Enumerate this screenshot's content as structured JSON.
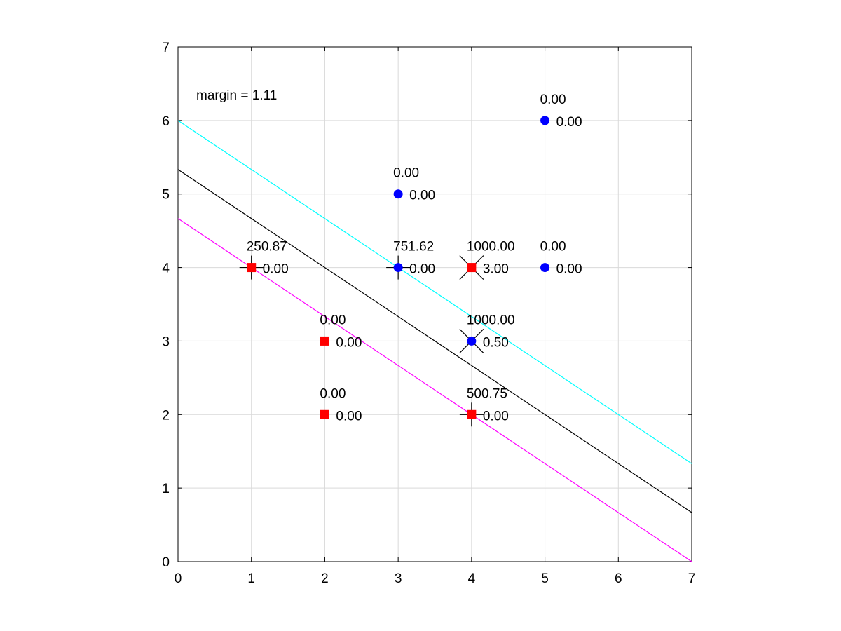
{
  "chart_data": {
    "type": "scatter",
    "title": "",
    "xlabel": "",
    "ylabel": "",
    "xlim": [
      0,
      7
    ],
    "ylim": [
      0,
      7
    ],
    "x_ticks": [
      "0",
      "1",
      "2",
      "3",
      "4",
      "5",
      "6",
      "7"
    ],
    "y_ticks": [
      "0",
      "1",
      "2",
      "3",
      "4",
      "5",
      "6",
      "7"
    ],
    "grid": true,
    "annotation": "margin = 1.11",
    "colors": {
      "class_neg": "#ff0000",
      "class_pos": "#0000ff",
      "decision_line": "#000000",
      "margin_upper": "#00ffff",
      "margin_lower": "#ff00ff",
      "grid": "#d9d9d9"
    },
    "lines": [
      {
        "role": "decision-boundary",
        "color": "#000000",
        "x": [
          0,
          7
        ],
        "y": [
          5.333,
          0.667
        ]
      },
      {
        "role": "margin-upper",
        "color": "#00ffff",
        "x": [
          0,
          7
        ],
        "y": [
          6.0,
          1.333
        ]
      },
      {
        "role": "margin-lower",
        "color": "#ff00ff",
        "x": [
          0,
          7
        ],
        "y": [
          4.667,
          0.0
        ]
      }
    ],
    "points": [
      {
        "x": 1,
        "y": 4,
        "class": "neg",
        "marker": "plus",
        "top": "250.87",
        "right": "0.00"
      },
      {
        "x": 2,
        "y": 3,
        "class": "neg",
        "marker": "none",
        "top": "0.00",
        "right": "0.00"
      },
      {
        "x": 2,
        "y": 2,
        "class": "neg",
        "marker": "none",
        "top": "0.00",
        "right": "0.00"
      },
      {
        "x": 4,
        "y": 4,
        "class": "neg",
        "marker": "cross",
        "top": "1000.00",
        "right": "3.00"
      },
      {
        "x": 4,
        "y": 2,
        "class": "neg",
        "marker": "plus",
        "top": "500.75",
        "right": "0.00"
      },
      {
        "x": 3,
        "y": 5,
        "class": "pos",
        "marker": "none",
        "top": "0.00",
        "right": "0.00"
      },
      {
        "x": 3,
        "y": 4,
        "class": "pos",
        "marker": "plus",
        "top": "751.62",
        "right": "0.00"
      },
      {
        "x": 4,
        "y": 3,
        "class": "pos",
        "marker": "cross",
        "top": "1000.00",
        "right": "0.50"
      },
      {
        "x": 5,
        "y": 6,
        "class": "pos",
        "marker": "none",
        "top": "0.00",
        "right": "0.00"
      },
      {
        "x": 5,
        "y": 4,
        "class": "pos",
        "marker": "none",
        "top": "0.00",
        "right": "0.00"
      }
    ]
  }
}
